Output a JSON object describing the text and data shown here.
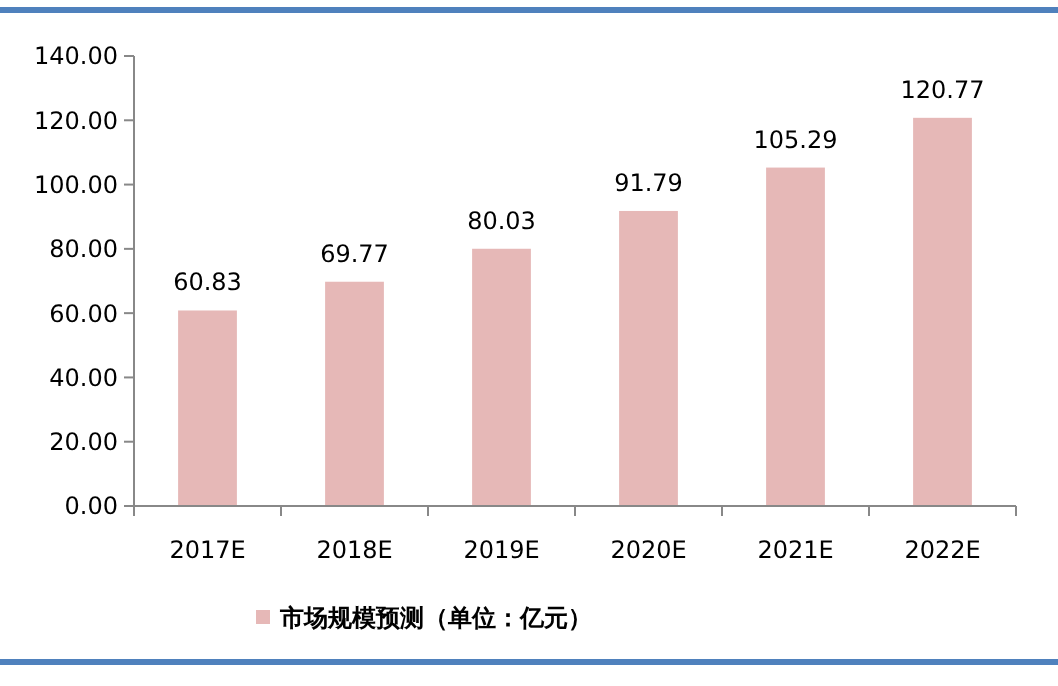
{
  "chart_data": {
    "type": "bar",
    "categories": [
      "2017E",
      "2018E",
      "2019E",
      "2020E",
      "2021E",
      "2022E"
    ],
    "series": [
      {
        "name": "市场规模预测（单位：亿元）",
        "color": "#e6b8b7",
        "values": [
          60.83,
          69.77,
          80.03,
          91.79,
          105.29,
          120.77
        ]
      }
    ],
    "ylim": [
      0,
      140
    ],
    "yticks": [
      {
        "value": 0,
        "label": "0.00"
      },
      {
        "value": 20,
        "label": "20.00"
      },
      {
        "value": 40,
        "label": "40.00"
      },
      {
        "value": 60,
        "label": "60.00"
      },
      {
        "value": 80,
        "label": "80.00"
      },
      {
        "value": 100,
        "label": "100.00"
      },
      {
        "value": 120,
        "label": "120.00"
      },
      {
        "value": 140,
        "label": "140.00"
      }
    ],
    "data_labels": true,
    "legend": "bottom",
    "grid": false
  }
}
